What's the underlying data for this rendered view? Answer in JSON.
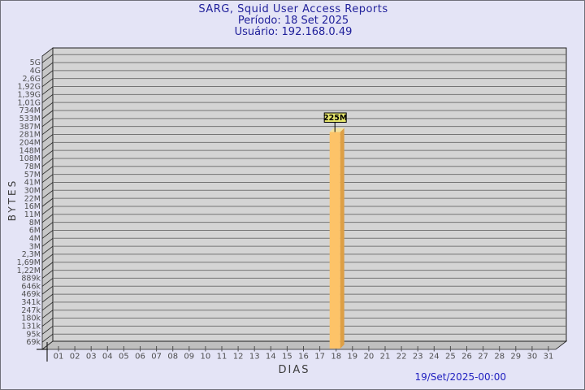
{
  "header": {
    "title": "SARG, Squid User Access Reports",
    "period": "Período: 18 Set 2025",
    "user": "Usuário: 192.168.0.49"
  },
  "footer": {
    "timestamp": "19/Set/2025-00:00"
  },
  "colors": {
    "background": "#E4E4F6",
    "frame_border": "#70707A",
    "title_text": "#21219B",
    "footer_text": "#2020C0",
    "plot_face": "#D4D4D4",
    "plot_wall": "#C7C7C7",
    "plot_floor": "#BFBFBF",
    "plot_outline": "#222222",
    "gridline": "#757575",
    "tick_text": "#4F4F4F",
    "bar_front": "#FDC368",
    "bar_side": "#DD9F45",
    "bar_top": "#F2E2A0",
    "callout_bg": "#E9E96E",
    "callout_border": "#000000",
    "callout_text": "#000000"
  },
  "chart_data": {
    "type": "bar",
    "title": "SARG, Squid User Access Reports",
    "subtitle_lines": [
      "Período: 18 Set 2025",
      "Usuário: 192.168.0.49"
    ],
    "xlabel": "DIAS",
    "ylabel": "BYTES",
    "scale": "log",
    "grid": true,
    "x_ticks": [
      "01",
      "02",
      "03",
      "04",
      "05",
      "06",
      "07",
      "08",
      "09",
      "10",
      "11",
      "12",
      "13",
      "14",
      "15",
      "16",
      "17",
      "18",
      "19",
      "20",
      "21",
      "22",
      "23",
      "24",
      "25",
      "26",
      "27",
      "28",
      "29",
      "30",
      "31"
    ],
    "y_ticks": [
      "5G",
      "4G",
      "2,6G",
      "1,92G",
      "1,39G",
      "1,01G",
      "734M",
      "533M",
      "387M",
      "281M",
      "204M",
      "148M",
      "108M",
      "78M",
      "57M",
      "41M",
      "30M",
      "22M",
      "16M",
      "11M",
      "8M",
      "6M",
      "4M",
      "3M",
      "2,3M",
      "1,69M",
      "1,22M",
      "889k",
      "646k",
      "469k",
      "341k",
      "247k",
      "180k",
      "131k",
      "95k",
      "69k"
    ],
    "bars": [
      {
        "day": "18",
        "value": "225M"
      }
    ],
    "timestamp": "19/Set/2025-00:00"
  }
}
